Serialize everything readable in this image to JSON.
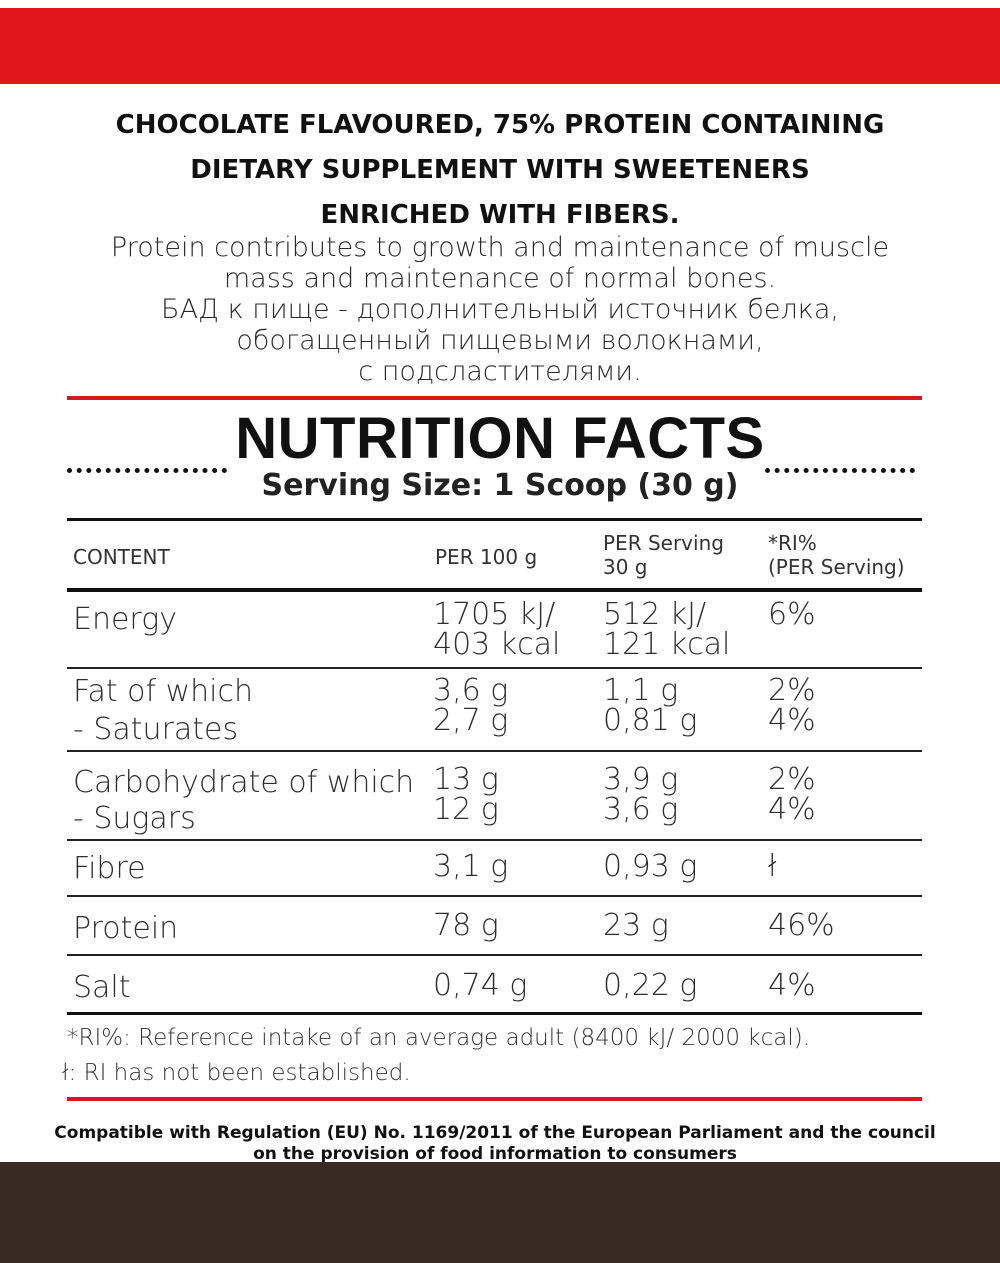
{
  "product": {
    "headline_lines": [
      "CHOCOLATE FLAVOURED, 75% PROTEIN CONTAINING",
      "DIETARY SUPPLEMENT WITH SWEETENERS",
      "ENRICHED WITH FIBERS."
    ],
    "description_lines": [
      "Protein contributes to growth and maintenance of muscle",
      "mass and maintenance of normal bones.",
      "БАД к пище - дополнительный источник белка,",
      "обогащенный пищевыми волокнами,",
      "с подсластителями."
    ]
  },
  "nutrition": {
    "title": "NUTRITION FACTS",
    "serving_size": "Serving Size: 1 Scoop (30 g)",
    "headers": {
      "content": "CONTENT",
      "per100": "PER 100 g",
      "per_serving_1": "PER Serving",
      "per_serving_2": "30 g",
      "ri_1": "*RI%",
      "ri_2": "(PER Serving)"
    },
    "rows": [
      {
        "name": [
          "Energy"
        ],
        "per100": [
          "1705 kJ/",
          "403 kcal"
        ],
        "per_serving": [
          "512 kJ/",
          "121 kcal"
        ],
        "ri": [
          "6%"
        ]
      },
      {
        "name": [
          "Fat of which",
          "- Saturates"
        ],
        "per100": [
          "3,6 g",
          "2,7 g"
        ],
        "per_serving": [
          "1,1 g",
          "0,81 g"
        ],
        "ri": [
          "2%",
          "4%"
        ]
      },
      {
        "name": [
          "Carbohydrate of which",
          "- Sugars"
        ],
        "per100": [
          "13 g",
          "12 g"
        ],
        "per_serving": [
          "3,9 g",
          "3,6 g"
        ],
        "ri": [
          "2%",
          "4%"
        ]
      },
      {
        "name": [
          "Fibre"
        ],
        "per100": [
          "3,1 g"
        ],
        "per_serving": [
          "0,93 g"
        ],
        "ri": [
          "ł"
        ]
      },
      {
        "name": [
          "Protein"
        ],
        "per100": [
          "78 g"
        ],
        "per_serving": [
          "23 g"
        ],
        "ri": [
          "46%"
        ]
      },
      {
        "name": [
          "Salt"
        ],
        "per100": [
          "0,74 g"
        ],
        "per_serving": [
          "0,22 g"
        ],
        "ri": [
          "4%"
        ]
      }
    ],
    "footnotes": [
      "*RI%: Reference intake of an average adult (8400 kJ/ 2000 kcal).",
      "ł: RI has not been established."
    ]
  },
  "regulation_lines": [
    "Compatible with Regulation (EU) No. 1169/2011 of the European Parliament and the council",
    "on the provision of food information to consumers"
  ],
  "colors": {
    "brand_red": "#e0161d",
    "rule_red": "#d31a1f",
    "chocolate_band": "#3a2a24"
  }
}
